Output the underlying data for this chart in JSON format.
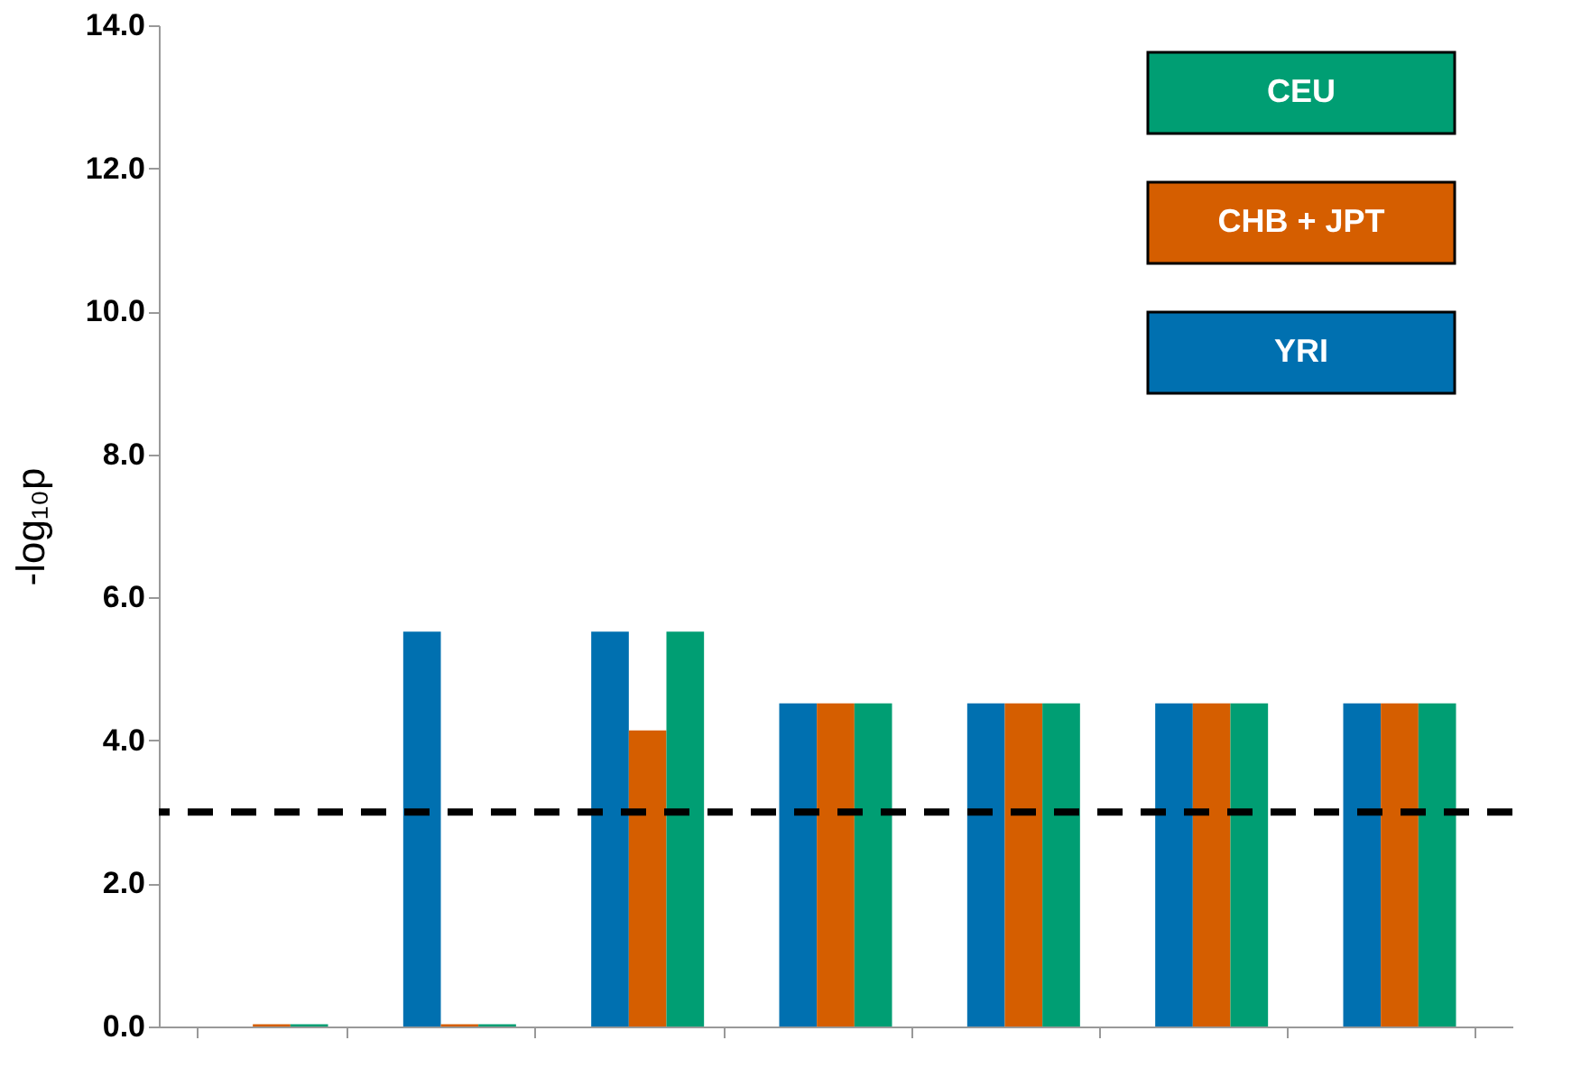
{
  "chart_data": {
    "type": "bar",
    "ylabel": "-log₁₀p",
    "categories": [
      null,
      null,
      null,
      null,
      null,
      null,
      null
    ],
    "series": [
      {
        "name": "YRI",
        "color": "#0070b0",
        "values": [
          0,
          5.52,
          5.52,
          4.52,
          4.52,
          4.52,
          4.52
        ]
      },
      {
        "name": "CHB + JPT",
        "color": "#d55e00",
        "values": [
          0.03,
          0.03,
          4.14,
          4.52,
          4.52,
          4.52,
          4.52
        ]
      },
      {
        "name": "CEU",
        "color": "#009e73",
        "values": [
          0.03,
          0.03,
          5.52,
          4.52,
          4.52,
          4.52,
          4.52
        ]
      }
    ],
    "ylim": [
      0,
      14
    ],
    "yticks": [
      {
        "value": 0,
        "label": "0.0"
      },
      {
        "value": 2,
        "label": "2.0"
      },
      {
        "value": 4,
        "label": "4.0"
      },
      {
        "value": 6,
        "label": "6.0"
      },
      {
        "value": 8,
        "label": "8.0"
      },
      {
        "value": 10,
        "label": "10.0"
      },
      {
        "value": 12,
        "label": "12.0"
      },
      {
        "value": 14,
        "label": "14.0"
      }
    ],
    "ref_lines": [
      {
        "axis": "y",
        "value": 3,
        "color": "#000000",
        "line_style": "dashed"
      }
    ],
    "grid": false,
    "legend": "top right"
  }
}
